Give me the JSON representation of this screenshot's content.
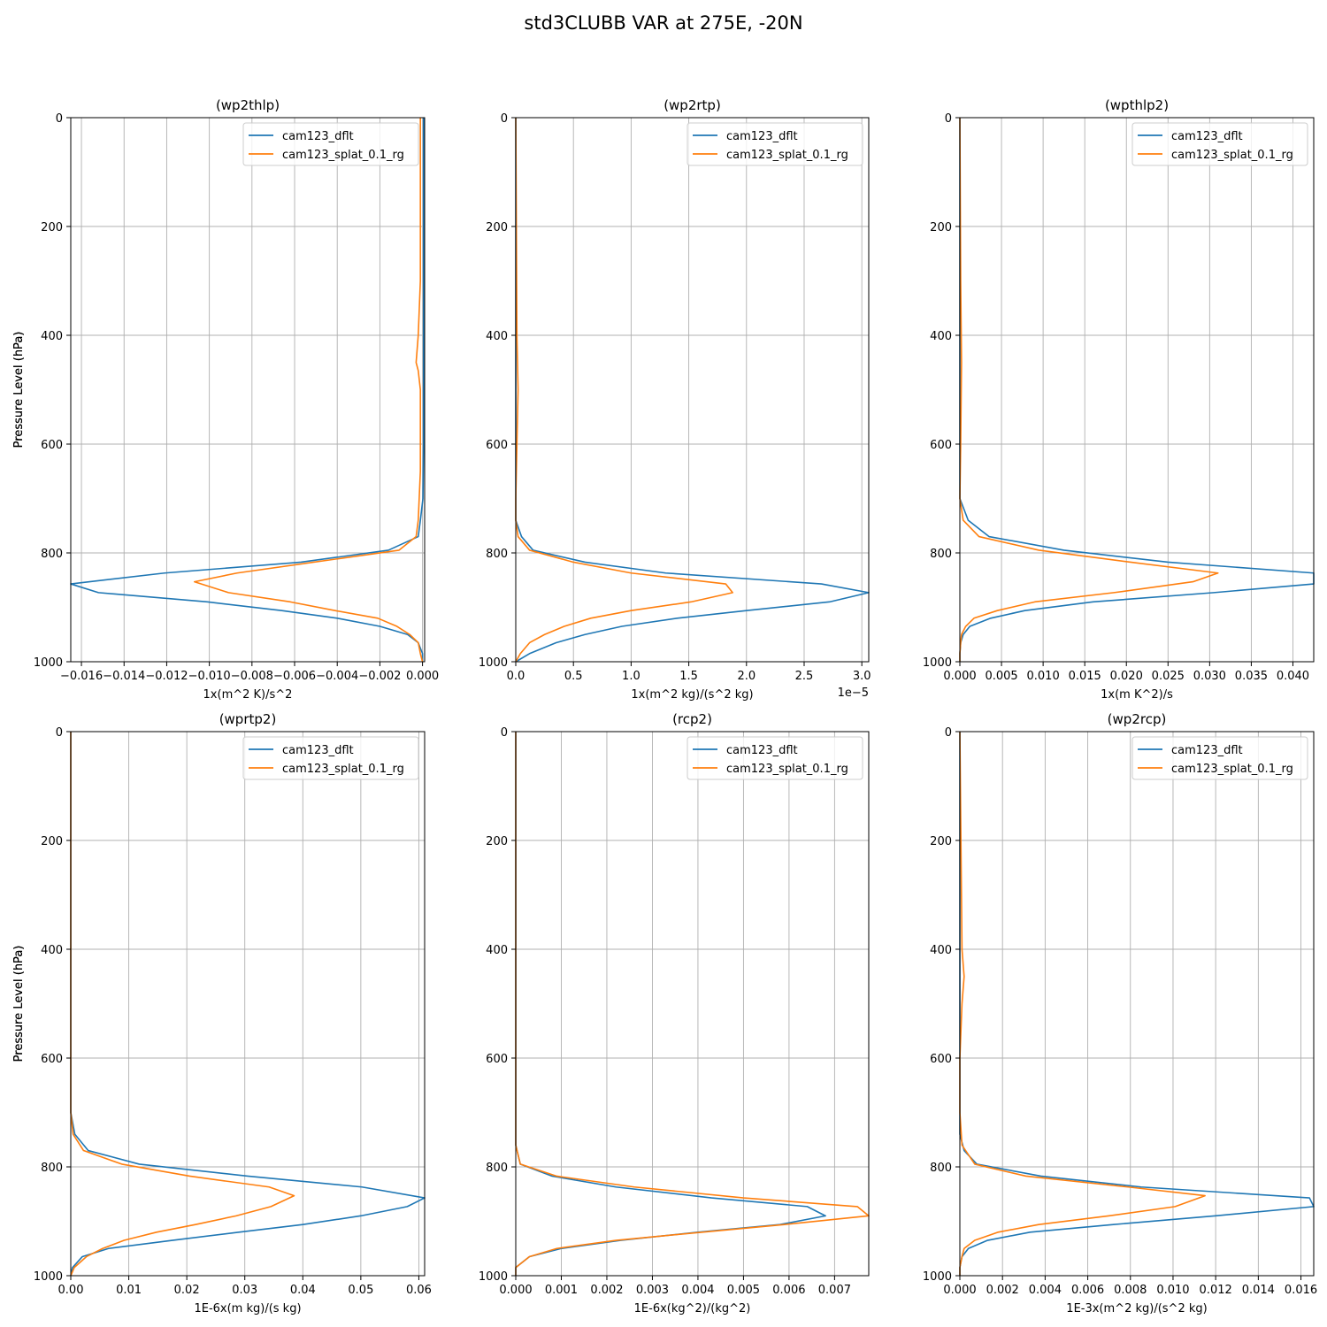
{
  "figure": {
    "title": "std3CLUBB VAR at 275E, -20N",
    "ylabel": "Pressure Level (hPa)",
    "legend": [
      "cam123_dflt",
      "cam123_splat_0.1_rg"
    ],
    "colors": {
      "dflt": "#1f77b4",
      "splat": "#ff7f0e",
      "grid": "#b0b0b0"
    }
  },
  "chart_data": [
    {
      "type": "line",
      "title": "(wp2thlp)",
      "xlabel": "1x(m^2 K)/s^2",
      "offset_text": "",
      "xlim": [
        -0.0165,
        0.0001
      ],
      "xticks": [
        -0.016,
        -0.014,
        -0.012,
        -0.01,
        -0.008,
        -0.006,
        -0.004,
        -0.002,
        0.0
      ],
      "xtick_labels": [
        "−0.016",
        "−0.014",
        "−0.012",
        "−0.010",
        "−0.008",
        "−0.006",
        "−0.004",
        "−0.002",
        "0.000"
      ],
      "ylim": [
        1000,
        0
      ],
      "yticks": [
        0,
        200,
        400,
        600,
        800,
        1000
      ],
      "series": [
        {
          "name": "cam123_dflt",
          "pressure": [
            0,
            100,
            300,
            500,
            600,
            700,
            740,
            770,
            795,
            817,
            837,
            857,
            873,
            890,
            906,
            920,
            935,
            950,
            965,
            985,
            1000
          ],
          "values": [
            5e-05,
            5e-05,
            5e-05,
            5e-05,
            5e-05,
            2e-05,
            -0.0001,
            -0.0002,
            -0.0016,
            -0.0057,
            -0.0121,
            -0.0165,
            -0.0152,
            -0.0101,
            -0.0066,
            -0.004,
            -0.002,
            -0.0007,
            -0.0002,
            0.0,
            0.0
          ]
        },
        {
          "name": "cam123_splat_0.1_rg",
          "pressure": [
            0,
            100,
            300,
            400,
            450,
            465,
            500,
            550,
            650,
            740,
            770,
            795,
            817,
            837,
            853,
            873,
            890,
            906,
            920,
            935,
            950,
            965,
            985,
            1000
          ],
          "values": [
            -0.0001,
            -0.0001,
            -0.0001,
            -0.0002,
            -0.0003,
            -0.0002,
            -0.0001,
            -0.0001,
            -0.0001,
            -0.0002,
            -0.0003,
            -0.0011,
            -0.0051,
            -0.0087,
            -0.0107,
            -0.0091,
            -0.0062,
            -0.0041,
            -0.0021,
            -0.0012,
            -0.0006,
            -0.0002,
            -0.0001,
            0.0
          ]
        }
      ]
    },
    {
      "type": "line",
      "title": "(wp2rtp)",
      "xlabel": "1x(m^2 kg)/(s^2 kg)",
      "offset_text": "1e−5",
      "xlim": [
        0.0,
        3.06
      ],
      "xticks": [
        0.0,
        0.5,
        1.0,
        1.5,
        2.0,
        2.5,
        3.0
      ],
      "xtick_labels": [
        "0.0",
        "0.5",
        "1.0",
        "1.5",
        "2.0",
        "2.5",
        "3.0"
      ],
      "ylim": [
        1000,
        0
      ],
      "yticks": [
        0,
        200,
        400,
        600,
        800,
        1000
      ],
      "series": [
        {
          "name": "cam123_dflt",
          "pressure": [
            0,
            400,
            600,
            700,
            740,
            770,
            795,
            817,
            837,
            857,
            873,
            890,
            906,
            920,
            935,
            950,
            965,
            985,
            1000
          ],
          "values": [
            0.0,
            0.0,
            0.0,
            0.0,
            0.0,
            0.05,
            0.15,
            0.6,
            1.3,
            2.65,
            3.06,
            2.72,
            2.0,
            1.4,
            0.92,
            0.6,
            0.35,
            0.12,
            0.0
          ]
        },
        {
          "name": "cam123_splat_0.1_rg",
          "pressure": [
            0,
            400,
            500,
            600,
            700,
            740,
            770,
            795,
            817,
            837,
            857,
            873,
            890,
            906,
            920,
            935,
            950,
            965,
            985,
            1000
          ],
          "values": [
            0.0,
            0.01,
            0.02,
            0.01,
            0.0,
            0.0,
            0.02,
            0.12,
            0.5,
            1.0,
            1.82,
            1.88,
            1.52,
            1.0,
            0.65,
            0.42,
            0.25,
            0.12,
            0.04,
            0.0
          ]
        }
      ]
    },
    {
      "type": "line",
      "title": "(wpthlp2)",
      "xlabel": "1x(m K^2)/s",
      "offset_text": "",
      "xlim": [
        0.0,
        0.0425
      ],
      "xticks": [
        0.0,
        0.005,
        0.01,
        0.015,
        0.02,
        0.025,
        0.03,
        0.035,
        0.04
      ],
      "xtick_labels": [
        "0.000",
        "0.005",
        "0.010",
        "0.015",
        "0.020",
        "0.025",
        "0.030",
        "0.035",
        "0.040"
      ],
      "ylim": [
        1000,
        0
      ],
      "yticks": [
        0,
        200,
        400,
        600,
        800,
        1000
      ],
      "series": [
        {
          "name": "cam123_dflt",
          "pressure": [
            0,
            400,
            600,
            700,
            740,
            770,
            795,
            817,
            837,
            857,
            873,
            890,
            906,
            920,
            935,
            950,
            965,
            985,
            1000
          ],
          "values": [
            0.0,
            0.0,
            0.0,
            0.0,
            0.001,
            0.0035,
            0.0125,
            0.025,
            0.0425,
            0.0425,
            0.0305,
            0.016,
            0.0078,
            0.0037,
            0.0012,
            0.0004,
            0.0001,
            0.0,
            0.0
          ]
        },
        {
          "name": "cam123_splat_0.1_rg",
          "pressure": [
            0,
            300,
            450,
            600,
            700,
            740,
            770,
            795,
            817,
            837,
            853,
            873,
            890,
            906,
            920,
            935,
            950,
            965,
            985,
            1000
          ],
          "values": [
            0.0,
            0.0001,
            0.0002,
            0.0001,
            0.0,
            0.0004,
            0.0023,
            0.0095,
            0.0205,
            0.031,
            0.028,
            0.0185,
            0.009,
            0.0045,
            0.0017,
            0.0007,
            0.0002,
            0.0001,
            0.0,
            0.0
          ]
        }
      ]
    },
    {
      "type": "line",
      "title": "(wprtp2)",
      "xlabel": "1E-6x(m kg)/(s kg)",
      "offset_text": "",
      "xlim": [
        0.0,
        0.061
      ],
      "xticks": [
        0.0,
        0.01,
        0.02,
        0.03,
        0.04,
        0.05,
        0.06
      ],
      "xtick_labels": [
        "0.00",
        "0.01",
        "0.02",
        "0.03",
        "0.04",
        "0.05",
        "0.06"
      ],
      "ylim": [
        1000,
        0
      ],
      "yticks": [
        0,
        200,
        400,
        600,
        800,
        1000
      ],
      "series": [
        {
          "name": "cam123_dflt",
          "pressure": [
            0,
            400,
            600,
            700,
            740,
            770,
            795,
            817,
            837,
            857,
            873,
            890,
            906,
            920,
            935,
            950,
            965,
            985,
            1000
          ],
          "values": [
            0.0,
            0.0,
            0.0,
            0.0,
            0.0007,
            0.003,
            0.0118,
            0.0305,
            0.0502,
            0.061,
            0.058,
            0.05,
            0.04,
            0.029,
            0.0175,
            0.0065,
            0.002,
            0.0003,
            0.0
          ]
        },
        {
          "name": "cam123_splat_0.1_rg",
          "pressure": [
            0,
            400,
            600,
            700,
            740,
            770,
            795,
            817,
            837,
            853,
            873,
            890,
            906,
            920,
            935,
            950,
            965,
            985,
            1000
          ],
          "values": [
            0.0,
            0.0,
            0.0,
            0.0,
            0.0004,
            0.0022,
            0.0088,
            0.0205,
            0.0342,
            0.0385,
            0.0345,
            0.0285,
            0.0215,
            0.0148,
            0.0092,
            0.0055,
            0.0027,
            0.0006,
            0.0
          ]
        }
      ]
    },
    {
      "type": "line",
      "title": "(rcp2)",
      "xlabel": "1E-6x(kg^2)/(kg^2)",
      "offset_text": "",
      "xlim": [
        0.0,
        0.00775
      ],
      "xticks": [
        0.0,
        0.001,
        0.002,
        0.003,
        0.004,
        0.005,
        0.006,
        0.007
      ],
      "xtick_labels": [
        "0.000",
        "0.001",
        "0.002",
        "0.003",
        "0.004",
        "0.005",
        "0.006",
        "0.007"
      ],
      "ylim": [
        1000,
        0
      ],
      "yticks": [
        0,
        200,
        400,
        600,
        800,
        1000
      ],
      "series": [
        {
          "name": "cam123_dflt",
          "pressure": [
            0,
            400,
            600,
            700,
            760,
            795,
            817,
            837,
            857,
            873,
            890,
            906,
            920,
            935,
            950,
            965,
            985,
            1000
          ],
          "values": [
            0.0,
            0.0,
            0.0,
            0.0,
            0.0,
            0.0001,
            0.0008,
            0.0022,
            0.0043,
            0.0064,
            0.0068,
            0.0058,
            0.004,
            0.0023,
            0.001,
            0.0003,
            0.0,
            0.0
          ]
        },
        {
          "name": "cam123_splat_0.1_rg",
          "pressure": [
            0,
            400,
            600,
            700,
            760,
            795,
            817,
            837,
            857,
            873,
            890,
            906,
            920,
            935,
            950,
            965,
            985,
            1000
          ],
          "values": [
            0.0,
            0.0,
            0.0,
            0.0,
            0.0,
            0.0001,
            0.0009,
            0.0026,
            0.005,
            0.0075,
            0.00775,
            0.0059,
            0.0041,
            0.0022,
            0.0009,
            0.0003,
            0.0,
            0.0
          ]
        }
      ]
    },
    {
      "type": "line",
      "title": "(wp2rcp)",
      "xlabel": "1E-3x(m^2 kg)/(s^2 kg)",
      "offset_text": "",
      "xlim": [
        0.0,
        0.0166
      ],
      "xticks": [
        0.0,
        0.002,
        0.004,
        0.006,
        0.008,
        0.01,
        0.012,
        0.014,
        0.016
      ],
      "xtick_labels": [
        "0.000",
        "0.002",
        "0.004",
        "0.006",
        "0.008",
        "0.010",
        "0.012",
        "0.014",
        "0.016"
      ],
      "ylim": [
        1000,
        0
      ],
      "yticks": [
        0,
        200,
        400,
        600,
        800,
        1000
      ],
      "series": [
        {
          "name": "cam123_dflt",
          "pressure": [
            0,
            400,
            600,
            700,
            740,
            770,
            795,
            817,
            837,
            857,
            873,
            890,
            906,
            920,
            935,
            950,
            965,
            985,
            1000
          ],
          "values": [
            0.0,
            0.0,
            0.0,
            0.0,
            0.0,
            0.0002,
            0.0008,
            0.0038,
            0.0085,
            0.0164,
            0.0166,
            0.012,
            0.0072,
            0.0033,
            0.0013,
            0.0004,
            0.0001,
            0.0,
            0.0
          ]
        },
        {
          "name": "cam123_splat_0.1_rg",
          "pressure": [
            0,
            400,
            450,
            500,
            600,
            700,
            760,
            795,
            817,
            837,
            853,
            873,
            890,
            906,
            920,
            935,
            950,
            965,
            985,
            1000
          ],
          "values": [
            0.0,
            0.0001,
            0.0002,
            0.0001,
            0.0,
            0.0,
            0.0001,
            0.0007,
            0.0031,
            0.0079,
            0.0115,
            0.0101,
            0.007,
            0.0037,
            0.0018,
            0.0007,
            0.0002,
            0.0001,
            0.0,
            0.0
          ]
        }
      ]
    }
  ]
}
